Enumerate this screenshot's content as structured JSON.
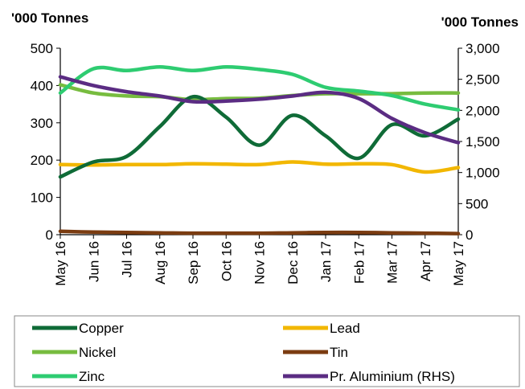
{
  "chart_data": {
    "type": "line",
    "y_left_label": "'000 Tonnes",
    "y_right_label": "'000 Tonnes",
    "ylim_left": [
      0,
      500
    ],
    "ylim_right": [
      0,
      3000
    ],
    "y_left_ticks": [
      "0",
      "100",
      "200",
      "300",
      "400",
      "500"
    ],
    "y_right_ticks": [
      "0",
      "500",
      "1,000",
      "1,500",
      "2,000",
      "2,500",
      "3,000"
    ],
    "categories": [
      "May 16",
      "Jun 16",
      "Jul 16",
      "Aug 16",
      "Sep 16",
      "Oct 16",
      "Nov 16",
      "Dec 16",
      "Jan 17",
      "Feb 17",
      "Mar 17",
      "Apr 17",
      "May 17"
    ],
    "grid": false,
    "legend_position": "bottom",
    "series": [
      {
        "name": "Copper",
        "axis": "left",
        "color": "#0f6b37",
        "values": [
          155,
          195,
          210,
          290,
          370,
          315,
          240,
          320,
          265,
          205,
          295,
          265,
          310
        ]
      },
      {
        "name": "Lead",
        "axis": "left",
        "color": "#f2b700",
        "values": [
          188,
          187,
          188,
          188,
          190,
          189,
          188,
          195,
          189,
          190,
          188,
          168,
          180
        ]
      },
      {
        "name": "Nickel",
        "axis": "left",
        "color": "#77bc3f",
        "values": [
          402,
          380,
          372,
          370,
          362,
          365,
          366,
          373,
          378,
          378,
          378,
          380,
          380
        ]
      },
      {
        "name": "Tin",
        "axis": "left",
        "color": "#7b3c11",
        "values": [
          9,
          7,
          6,
          5,
          4,
          4,
          4,
          5,
          6,
          6,
          5,
          4,
          3
        ]
      },
      {
        "name": "Zinc",
        "axis": "left",
        "color": "#2ecc71",
        "values": [
          380,
          445,
          440,
          450,
          440,
          450,
          443,
          430,
          395,
          385,
          373,
          350,
          335
        ]
      },
      {
        "name": "Pr. Aluminium (RHS)",
        "axis": "right",
        "color": "#5b2c83",
        "values": [
          2540,
          2400,
          2300,
          2230,
          2140,
          2150,
          2180,
          2230,
          2290,
          2190,
          1870,
          1640,
          1480
        ]
      }
    ]
  }
}
